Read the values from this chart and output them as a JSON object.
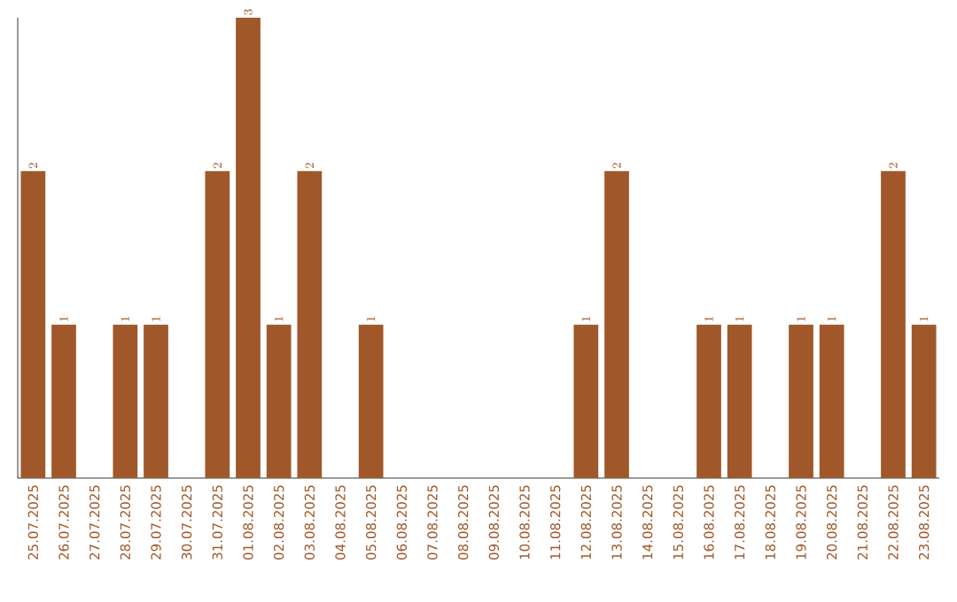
{
  "chart_data": {
    "type": "bar",
    "categories": [
      "25.07.2025",
      "26.07.2025",
      "27.07.2025",
      "28.07.2025",
      "29.07.2025",
      "30.07.2025",
      "31.07.2025",
      "01.08.2025",
      "02.08.2025",
      "03.08.2025",
      "04.08.2025",
      "05.08.2025",
      "06.08.2025",
      "07.08.2025",
      "08.08.2025",
      "09.08.2025",
      "10.08.2025",
      "11.08.2025",
      "12.08.2025",
      "13.08.2025",
      "14.08.2025",
      "15.08.2025",
      "16.08.2025",
      "17.08.2025",
      "18.08.2025",
      "19.08.2025",
      "20.08.2025",
      "21.08.2025",
      "22.08.2025",
      "23.08.2025"
    ],
    "values": [
      2,
      1,
      null,
      1,
      1,
      null,
      2,
      3,
      1,
      2,
      null,
      1,
      null,
      null,
      null,
      null,
      null,
      null,
      1,
      2,
      null,
      null,
      1,
      1,
      null,
      1,
      1,
      null,
      2,
      1
    ],
    "color": "#a0582a",
    "data_labels": true
  }
}
